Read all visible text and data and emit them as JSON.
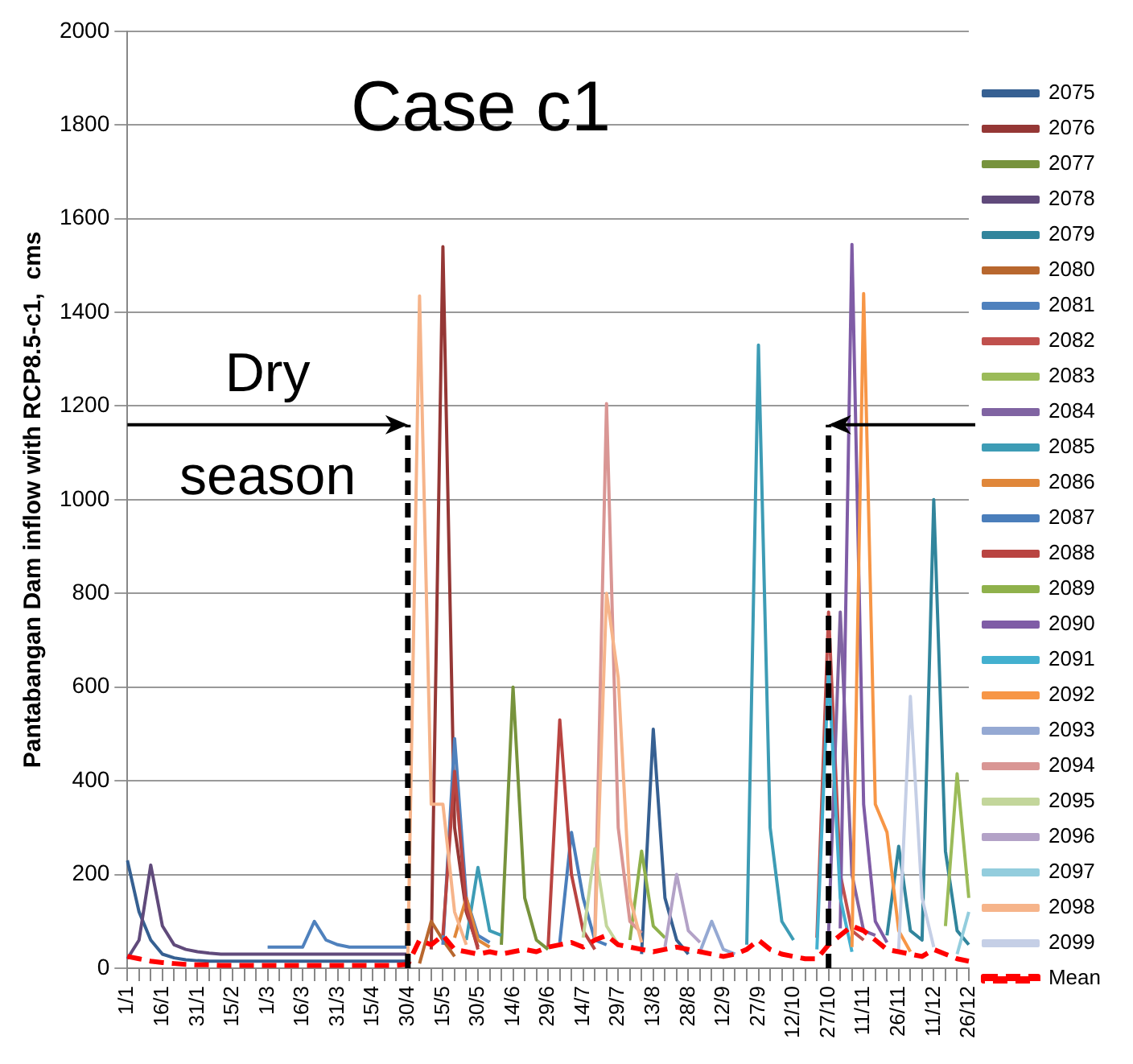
{
  "chart_data": {
    "type": "line",
    "ylabel": "Pantabangan Dam inflow with RCP8.5-c1,  cms",
    "annotations": [
      "Case c1",
      "Dry season"
    ],
    "categories": [
      "1/1",
      null,
      null,
      "16/1",
      null,
      null,
      "31/1",
      null,
      null,
      "15/2",
      null,
      null,
      "1/3",
      null,
      null,
      "16/3",
      null,
      null,
      "31/3",
      null,
      null,
      "15/4",
      null,
      null,
      "30/4",
      null,
      null,
      "15/5",
      null,
      null,
      "30/5",
      null,
      null,
      "14/6",
      null,
      null,
      "29/6",
      null,
      null,
      "14/7",
      null,
      null,
      "29/7",
      null,
      null,
      "13/8",
      null,
      null,
      "28/8",
      null,
      null,
      "12/9",
      null,
      null,
      "27/9",
      null,
      null,
      "12/10",
      null,
      null,
      "27/10",
      null,
      null,
      "11/11",
      null,
      null,
      "26/11",
      null,
      null,
      "11/12",
      null,
      null,
      "26/12"
    ],
    "ylim": [
      0,
      2000
    ],
    "yticks": [
      0,
      200,
      400,
      600,
      800,
      1000,
      1200,
      1400,
      1600,
      1800,
      2000
    ],
    "grid": "y",
    "legend": "right",
    "marker": "none",
    "ref_lines": [
      {
        "axis": "x",
        "value": "30/4",
        "color": "#000000",
        "line_style": "dashed"
      },
      {
        "axis": "x",
        "value": "27/10",
        "color": "#000000",
        "line_style": "dashed"
      }
    ],
    "series": [
      {
        "name": "2075",
        "color": "#366092",
        "values": [
          230,
          120,
          60,
          30,
          22,
          18,
          16,
          15,
          15,
          15,
          15,
          15,
          15,
          15,
          15,
          15,
          15,
          15,
          15,
          15,
          15,
          15,
          15,
          15,
          15,
          null,
          null,
          null,
          null,
          null,
          null,
          null,
          null,
          null,
          null,
          null,
          null,
          null,
          null,
          null,
          null,
          null,
          null,
          null,
          30,
          510,
          150,
          60,
          30,
          null,
          null,
          null,
          null,
          null,
          null,
          null,
          null,
          null,
          null,
          null,
          null,
          null,
          null,
          null,
          null,
          null,
          null,
          null,
          null,
          null,
          null,
          null,
          null
        ]
      },
      {
        "name": "2076",
        "color": "#953735",
        "values": [
          null,
          null,
          null,
          null,
          null,
          null,
          null,
          null,
          null,
          null,
          null,
          null,
          null,
          null,
          null,
          null,
          null,
          null,
          null,
          null,
          null,
          null,
          null,
          null,
          null,
          null,
          40,
          1540,
          300,
          120,
          45,
          null,
          null,
          null,
          null,
          null,
          null,
          null,
          null,
          null,
          null,
          null,
          null,
          null,
          null,
          null,
          null,
          null,
          null,
          null,
          null,
          null,
          null,
          null,
          null,
          null,
          null,
          null,
          null,
          null,
          null,
          null,
          null,
          null,
          null,
          null,
          null,
          null,
          null,
          null,
          null,
          null,
          null
        ]
      },
      {
        "name": "2077",
        "color": "#77933c",
        "values": [
          null,
          null,
          null,
          null,
          null,
          null,
          null,
          null,
          null,
          null,
          null,
          null,
          null,
          null,
          null,
          null,
          null,
          null,
          null,
          null,
          null,
          null,
          null,
          null,
          null,
          null,
          null,
          null,
          null,
          null,
          null,
          null,
          50,
          600,
          150,
          60,
          40,
          null,
          null,
          null,
          null,
          null,
          null,
          null,
          null,
          null,
          null,
          null,
          null,
          null,
          null,
          null,
          null,
          null,
          null,
          null,
          null,
          null,
          null,
          null,
          null,
          null,
          null,
          null,
          null,
          null,
          null,
          null,
          null,
          null,
          null,
          null,
          null
        ]
      },
      {
        "name": "2078",
        "color": "#604a7b",
        "values": [
          20,
          60,
          220,
          90,
          50,
          40,
          35,
          32,
          30,
          30,
          30,
          30,
          30,
          30,
          30,
          30,
          30,
          30,
          30,
          30,
          30,
          30,
          30,
          30,
          30,
          null,
          null,
          null,
          null,
          null,
          null,
          null,
          null,
          null,
          null,
          null,
          null,
          null,
          null,
          null,
          null,
          null,
          null,
          null,
          null,
          null,
          null,
          null,
          null,
          null,
          null,
          null,
          null,
          null,
          null,
          null,
          null,
          null,
          null,
          null,
          null,
          null,
          null,
          null,
          null,
          null,
          null,
          null,
          null,
          null,
          null,
          null,
          null
        ]
      },
      {
        "name": "2079",
        "color": "#31859c",
        "values": [
          null,
          null,
          null,
          null,
          null,
          null,
          null,
          null,
          null,
          null,
          null,
          null,
          null,
          null,
          null,
          null,
          null,
          null,
          null,
          null,
          null,
          null,
          null,
          null,
          null,
          null,
          null,
          null,
          null,
          null,
          null,
          null,
          null,
          null,
          null,
          null,
          null,
          null,
          null,
          null,
          null,
          null,
          null,
          null,
          null,
          null,
          null,
          null,
          null,
          null,
          null,
          null,
          null,
          null,
          null,
          null,
          null,
          null,
          null,
          null,
          null,
          null,
          null,
          null,
          null,
          70,
          260,
          80,
          60,
          1000,
          250,
          80,
          50
        ]
      },
      {
        "name": "2080",
        "color": "#b8672e",
        "values": [
          null,
          null,
          null,
          null,
          null,
          null,
          null,
          null,
          null,
          null,
          null,
          null,
          null,
          null,
          null,
          null,
          null,
          null,
          null,
          null,
          null,
          null,
          null,
          null,
          null,
          10,
          100,
          60,
          25,
          null,
          null,
          null,
          null,
          null,
          null,
          null,
          null,
          null,
          null,
          null,
          null,
          null,
          null,
          null,
          null,
          null,
          null,
          null,
          null,
          null,
          null,
          null,
          null,
          null,
          null,
          null,
          null,
          null,
          null,
          null,
          null,
          null,
          null,
          null,
          null,
          null,
          null,
          null,
          null,
          null,
          null,
          null,
          null
        ]
      },
      {
        "name": "2081",
        "color": "#4f81bd",
        "values": [
          null,
          null,
          null,
          null,
          null,
          null,
          null,
          null,
          null,
          null,
          null,
          null,
          45,
          45,
          45,
          45,
          100,
          60,
          50,
          45,
          45,
          45,
          45,
          45,
          45,
          null,
          null,
          50,
          490,
          150,
          70,
          55,
          null,
          null,
          null,
          null,
          null,
          null,
          null,
          null,
          null,
          null,
          null,
          null,
          null,
          null,
          null,
          null,
          null,
          null,
          null,
          null,
          null,
          null,
          null,
          null,
          null,
          null,
          null,
          null,
          null,
          null,
          null,
          null,
          null,
          null,
          null,
          null,
          null,
          null,
          null,
          null,
          null
        ]
      },
      {
        "name": "2082",
        "color": "#c0504d",
        "values": [
          null,
          null,
          null,
          null,
          null,
          null,
          null,
          null,
          null,
          null,
          null,
          null,
          null,
          null,
          null,
          null,
          null,
          null,
          null,
          null,
          null,
          null,
          null,
          null,
          null,
          null,
          null,
          null,
          null,
          null,
          null,
          null,
          null,
          null,
          null,
          null,
          null,
          null,
          null,
          null,
          null,
          null,
          null,
          null,
          null,
          null,
          null,
          null,
          null,
          null,
          null,
          null,
          null,
          null,
          null,
          null,
          null,
          null,
          null,
          65,
          760,
          200,
          80,
          60,
          null,
          null,
          null,
          null,
          null,
          null,
          null,
          null,
          null
        ]
      },
      {
        "name": "2083",
        "color": "#9bbb59",
        "values": [
          null,
          null,
          null,
          null,
          null,
          null,
          null,
          null,
          null,
          null,
          null,
          null,
          null,
          null,
          null,
          null,
          null,
          null,
          null,
          null,
          null,
          null,
          null,
          null,
          null,
          null,
          null,
          null,
          null,
          null,
          null,
          null,
          null,
          null,
          null,
          null,
          null,
          null,
          null,
          null,
          null,
          null,
          null,
          null,
          null,
          null,
          null,
          null,
          null,
          null,
          null,
          null,
          null,
          null,
          null,
          null,
          null,
          null,
          null,
          null,
          null,
          null,
          null,
          null,
          null,
          null,
          null,
          null,
          null,
          null,
          90,
          415,
          150
        ]
      },
      {
        "name": "2084",
        "color": "#8064a2",
        "values": [
          null,
          null,
          null,
          null,
          null,
          null,
          null,
          null,
          null,
          null,
          null,
          null,
          null,
          null,
          null,
          null,
          null,
          null,
          null,
          null,
          null,
          null,
          null,
          null,
          null,
          null,
          null,
          null,
          null,
          null,
          null,
          null,
          null,
          null,
          null,
          null,
          null,
          null,
          null,
          null,
          null,
          null,
          null,
          null,
          null,
          null,
          null,
          null,
          null,
          null,
          null,
          null,
          null,
          null,
          null,
          null,
          null,
          null,
          null,
          null,
          75,
          760,
          200,
          80,
          70,
          null,
          null,
          null,
          null,
          null,
          null,
          null,
          null
        ]
      },
      {
        "name": "2085",
        "color": "#3d9cb5",
        "values": [
          null,
          null,
          null,
          null,
          null,
          null,
          null,
          null,
          null,
          null,
          null,
          null,
          null,
          null,
          null,
          null,
          null,
          null,
          null,
          null,
          null,
          null,
          null,
          null,
          null,
          null,
          null,
          null,
          null,
          60,
          215,
          80,
          70,
          null,
          null,
          null,
          null,
          null,
          null,
          null,
          null,
          null,
          null,
          null,
          null,
          null,
          null,
          null,
          null,
          null,
          null,
          null,
          null,
          50,
          1330,
          300,
          100,
          60,
          null,
          null,
          null,
          null,
          null,
          null,
          null,
          null,
          null,
          null,
          null,
          null,
          null,
          null,
          null
        ]
      },
      {
        "name": "2086",
        "color": "#e0873a",
        "values": [
          null,
          null,
          null,
          null,
          null,
          null,
          null,
          null,
          null,
          null,
          null,
          null,
          null,
          null,
          null,
          null,
          null,
          null,
          null,
          null,
          null,
          null,
          null,
          null,
          null,
          null,
          null,
          null,
          65,
          150,
          60,
          45,
          null,
          null,
          null,
          null,
          null,
          null,
          null,
          null,
          null,
          null,
          null,
          null,
          null,
          null,
          null,
          null,
          null,
          null,
          null,
          null,
          null,
          null,
          null,
          null,
          null,
          null,
          null,
          null,
          null,
          null,
          null,
          null,
          null,
          null,
          null,
          null,
          null,
          null,
          null,
          null,
          null
        ]
      },
      {
        "name": "2087",
        "color": "#4a7ebb",
        "values": [
          null,
          null,
          null,
          null,
          null,
          null,
          null,
          null,
          null,
          null,
          null,
          null,
          null,
          null,
          null,
          null,
          null,
          null,
          null,
          null,
          null,
          null,
          null,
          null,
          null,
          null,
          null,
          null,
          null,
          null,
          null,
          null,
          null,
          null,
          null,
          null,
          null,
          55,
          290,
          150,
          60,
          50,
          null,
          null,
          null,
          null,
          null,
          null,
          null,
          null,
          null,
          null,
          null,
          null,
          null,
          null,
          null,
          null,
          null,
          null,
          null,
          null,
          null,
          null,
          null,
          null,
          null,
          null,
          null,
          null,
          null,
          null,
          null
        ]
      },
      {
        "name": "2088",
        "color": "#b94441",
        "values": [
          null,
          null,
          null,
          null,
          null,
          null,
          null,
          null,
          null,
          null,
          null,
          null,
          null,
          null,
          null,
          null,
          null,
          null,
          null,
          null,
          null,
          null,
          null,
          null,
          null,
          null,
          null,
          70,
          420,
          130,
          40,
          null,
          null,
          null,
          null,
          null,
          45,
          530,
          200,
          80,
          40,
          null,
          null,
          null,
          null,
          null,
          null,
          null,
          null,
          null,
          null,
          null,
          null,
          null,
          null,
          null,
          null,
          null,
          null,
          null,
          null,
          null,
          null,
          null,
          null,
          null,
          null,
          null,
          null,
          null,
          null,
          null,
          null
        ]
      },
      {
        "name": "2089",
        "color": "#8fb14b",
        "values": [
          null,
          null,
          null,
          null,
          null,
          null,
          null,
          null,
          null,
          null,
          null,
          null,
          null,
          null,
          null,
          null,
          null,
          null,
          null,
          null,
          null,
          null,
          null,
          null,
          null,
          null,
          null,
          null,
          null,
          null,
          null,
          null,
          null,
          null,
          null,
          null,
          null,
          null,
          null,
          null,
          null,
          null,
          null,
          60,
          250,
          90,
          65,
          null,
          null,
          null,
          null,
          null,
          null,
          null,
          null,
          null,
          null,
          null,
          null,
          null,
          null,
          null,
          null,
          null,
          null,
          null,
          null,
          null,
          null,
          null,
          null,
          null,
          null
        ]
      },
      {
        "name": "2090",
        "color": "#7f5ca6",
        "values": [
          null,
          null,
          null,
          null,
          null,
          null,
          null,
          null,
          null,
          null,
          null,
          null,
          null,
          null,
          null,
          null,
          null,
          null,
          null,
          null,
          null,
          null,
          null,
          null,
          null,
          null,
          null,
          null,
          null,
          null,
          null,
          null,
          null,
          null,
          null,
          null,
          null,
          null,
          null,
          null,
          null,
          null,
          null,
          null,
          null,
          null,
          null,
          null,
          null,
          null,
          null,
          null,
          null,
          null,
          null,
          null,
          null,
          null,
          null,
          null,
          null,
          85,
          1545,
          350,
          100,
          55,
          null,
          null,
          null,
          null,
          null,
          null,
          null
        ]
      },
      {
        "name": "2091",
        "color": "#43b0cf",
        "values": [
          null,
          null,
          null,
          null,
          null,
          null,
          null,
          null,
          null,
          null,
          null,
          null,
          null,
          null,
          null,
          null,
          null,
          null,
          null,
          null,
          null,
          null,
          null,
          null,
          null,
          null,
          null,
          null,
          null,
          null,
          null,
          null,
          null,
          null,
          null,
          null,
          null,
          null,
          null,
          null,
          null,
          null,
          null,
          null,
          null,
          null,
          null,
          null,
          null,
          null,
          null,
          null,
          null,
          null,
          null,
          null,
          null,
          null,
          null,
          40,
          640,
          150,
          35,
          null,
          null,
          null,
          null,
          null,
          null,
          null,
          null,
          null,
          null
        ]
      },
      {
        "name": "2092",
        "color": "#f79646",
        "values": [
          null,
          null,
          null,
          null,
          null,
          null,
          null,
          null,
          null,
          null,
          null,
          null,
          null,
          null,
          null,
          null,
          null,
          null,
          null,
          null,
          null,
          null,
          null,
          null,
          null,
          null,
          null,
          null,
          null,
          null,
          null,
          null,
          null,
          null,
          null,
          null,
          null,
          null,
          null,
          null,
          null,
          null,
          null,
          null,
          null,
          null,
          null,
          null,
          null,
          null,
          null,
          null,
          null,
          null,
          null,
          null,
          null,
          null,
          null,
          null,
          null,
          null,
          45,
          1440,
          350,
          290,
          80,
          35,
          null,
          null,
          null,
          null,
          null
        ]
      },
      {
        "name": "2093",
        "color": "#95a9d3",
        "values": [
          null,
          null,
          null,
          null,
          null,
          null,
          null,
          null,
          null,
          null,
          null,
          null,
          null,
          null,
          null,
          null,
          null,
          null,
          null,
          null,
          null,
          null,
          null,
          null,
          null,
          null,
          null,
          null,
          null,
          null,
          null,
          null,
          null,
          null,
          null,
          null,
          null,
          null,
          null,
          null,
          null,
          null,
          null,
          null,
          null,
          null,
          null,
          null,
          null,
          35,
          100,
          40,
          30,
          null,
          null,
          null,
          null,
          null,
          null,
          null,
          null,
          null,
          null,
          null,
          null,
          null,
          null,
          null,
          null,
          null,
          null,
          null,
          null
        ]
      },
      {
        "name": "2094",
        "color": "#d99694",
        "values": [
          null,
          null,
          null,
          null,
          null,
          null,
          null,
          null,
          null,
          null,
          null,
          null,
          null,
          null,
          null,
          null,
          null,
          null,
          null,
          null,
          null,
          null,
          null,
          null,
          null,
          null,
          null,
          null,
          null,
          null,
          null,
          null,
          null,
          null,
          null,
          null,
          null,
          null,
          null,
          null,
          70,
          1205,
          300,
          100,
          75,
          null,
          null,
          null,
          null,
          null,
          null,
          null,
          null,
          null,
          null,
          null,
          null,
          null,
          null,
          null,
          null,
          null,
          null,
          null,
          null,
          null,
          null,
          null,
          null,
          null,
          null,
          null,
          null
        ]
      },
      {
        "name": "2095",
        "color": "#c3d69b",
        "values": [
          null,
          null,
          null,
          null,
          null,
          null,
          null,
          null,
          null,
          null,
          null,
          null,
          null,
          null,
          null,
          null,
          null,
          null,
          null,
          null,
          null,
          null,
          null,
          null,
          null,
          null,
          null,
          null,
          null,
          null,
          null,
          null,
          null,
          null,
          null,
          null,
          null,
          null,
          null,
          65,
          255,
          90,
          50,
          null,
          null,
          null,
          null,
          null,
          null,
          null,
          null,
          null,
          null,
          null,
          null,
          null,
          null,
          null,
          null,
          null,
          null,
          null,
          null,
          null,
          null,
          null,
          null,
          null,
          null,
          null,
          null,
          null,
          null
        ]
      },
      {
        "name": "2096",
        "color": "#b3a2c7",
        "values": [
          null,
          null,
          null,
          null,
          null,
          null,
          null,
          null,
          null,
          null,
          null,
          null,
          null,
          null,
          null,
          null,
          null,
          null,
          null,
          null,
          null,
          null,
          null,
          null,
          null,
          null,
          null,
          null,
          null,
          null,
          null,
          null,
          null,
          null,
          null,
          null,
          null,
          null,
          null,
          null,
          null,
          null,
          null,
          null,
          null,
          null,
          45,
          200,
          80,
          55,
          null,
          null,
          null,
          null,
          null,
          null,
          null,
          null,
          null,
          null,
          null,
          null,
          null,
          null,
          null,
          null,
          null,
          null,
          null,
          null,
          null,
          null,
          null
        ]
      },
      {
        "name": "2097",
        "color": "#93cddd",
        "values": [
          null,
          null,
          null,
          null,
          null,
          null,
          null,
          null,
          null,
          null,
          null,
          null,
          null,
          null,
          null,
          null,
          null,
          null,
          null,
          null,
          null,
          null,
          null,
          null,
          null,
          null,
          null,
          null,
          null,
          null,
          null,
          null,
          null,
          null,
          null,
          null,
          null,
          null,
          null,
          null,
          null,
          null,
          null,
          null,
          null,
          null,
          null,
          null,
          null,
          null,
          null,
          null,
          null,
          null,
          null,
          null,
          null,
          null,
          null,
          null,
          null,
          null,
          null,
          null,
          null,
          null,
          null,
          null,
          null,
          null,
          null,
          30,
          120
        ]
      },
      {
        "name": "2098",
        "color": "#f6b48a",
        "values": [
          null,
          null,
          null,
          null,
          null,
          null,
          null,
          null,
          null,
          null,
          null,
          null,
          null,
          null,
          null,
          null,
          null,
          null,
          null,
          null,
          null,
          null,
          null,
          null,
          22,
          1435,
          350,
          350,
          120,
          50,
          null,
          null,
          null,
          null,
          null,
          null,
          null,
          null,
          null,
          null,
          60,
          800,
          620,
          150,
          55,
          null,
          null,
          null,
          null,
          null,
          null,
          null,
          null,
          null,
          null,
          null,
          null,
          null,
          null,
          null,
          null,
          null,
          null,
          null,
          null,
          null,
          null,
          null,
          null,
          null,
          null,
          null,
          null
        ]
      },
      {
        "name": "2099",
        "color": "#c5cfe6",
        "values": [
          null,
          null,
          null,
          null,
          null,
          null,
          null,
          null,
          null,
          null,
          null,
          null,
          null,
          null,
          null,
          null,
          null,
          null,
          null,
          null,
          null,
          null,
          null,
          null,
          null,
          null,
          null,
          null,
          null,
          null,
          null,
          null,
          null,
          null,
          null,
          null,
          null,
          null,
          null,
          null,
          null,
          null,
          null,
          null,
          null,
          null,
          null,
          null,
          null,
          null,
          null,
          null,
          null,
          null,
          null,
          null,
          null,
          null,
          null,
          null,
          null,
          null,
          null,
          null,
          null,
          null,
          40,
          580,
          150,
          45,
          null,
          null,
          null
        ]
      },
      {
        "name": "Mean",
        "color": "#ff0000",
        "line_style": "dashed",
        "values": [
          25,
          20,
          15,
          12,
          10,
          8,
          7,
          7,
          6,
          6,
          6,
          6,
          6,
          6,
          6,
          6,
          6,
          6,
          6,
          6,
          6,
          6,
          6,
          6,
          8,
          60,
          50,
          70,
          40,
          35,
          30,
          35,
          30,
          35,
          40,
          35,
          45,
          50,
          55,
          45,
          60,
          70,
          50,
          45,
          40,
          35,
          40,
          45,
          40,
          35,
          30,
          25,
          30,
          40,
          60,
          40,
          30,
          25,
          20,
          20,
          50,
          70,
          90,
          80,
          60,
          40,
          35,
          30,
          25,
          40,
          30,
          20,
          15
        ]
      }
    ]
  }
}
